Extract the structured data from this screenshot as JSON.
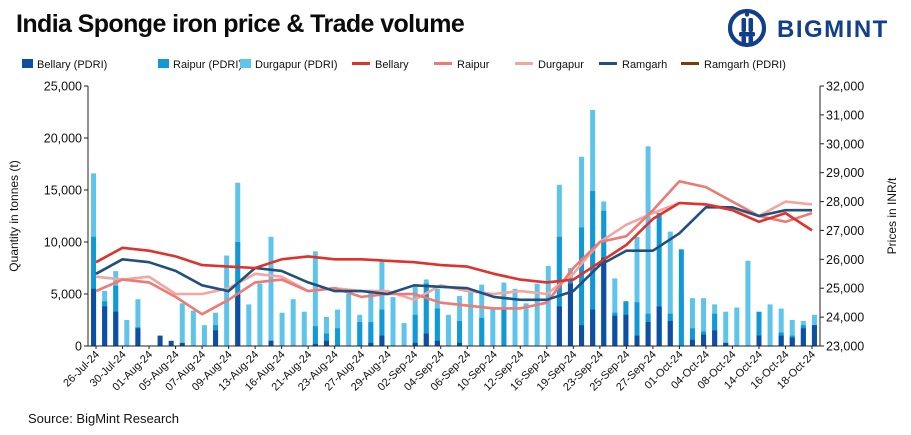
{
  "header": {
    "title": "India Sponge iron price & Trade volume",
    "logo_text": "BIGMINT"
  },
  "footer": {
    "source": "Source: BigMint Research"
  },
  "colors": {
    "bellary_pdri": "#0f4fa3",
    "raipur_pdri": "#1199d6",
    "durgapur_pdri": "#5ec4ec",
    "bellary": "#e0322b",
    "raipur": "#ee7a73",
    "durgapur": "#f4a5a0",
    "ramgarh": "#21507f",
    "ramgarh_pdri": "#7a3b0c",
    "brand": "#123f8c"
  },
  "chart_data": {
    "type": "bar+line",
    "title": "India Sponge iron price & Trade volume",
    "ylabel_left": "Quantity in tonnes (t)",
    "ylabel_right": "Prices in INR/t",
    "ylim_left": [
      0,
      25000
    ],
    "ylim_right": [
      23000,
      32000
    ],
    "yticks_left": [
      "0",
      "5,000",
      "10,000",
      "15,000",
      "20,000",
      "25,000"
    ],
    "yticks_right": [
      "23,000",
      "24,000",
      "25,000",
      "26,000",
      "27,000",
      "28,000",
      "29,000",
      "30,000",
      "31,000",
      "32,000"
    ],
    "xtick_labels": [
      "26-Jul-24",
      "30-Jul-24",
      "01-Aug-24",
      "05-Aug-24",
      "07-Aug-24",
      "09-Aug-24",
      "13-Aug-24",
      "16-Aug-24",
      "21-Aug-24",
      "23-Aug-24",
      "27-Aug-24",
      "29-Aug-24",
      "02-Sep-24",
      "04-Sep-24",
      "06-Sep-24",
      "10-Sep-24",
      "12-Sep-24",
      "16-Sep-24",
      "19-Sep-24",
      "23-Sep-24",
      "25-Sep-24",
      "27-Sep-24",
      "01-Oct-24",
      "04-Oct-24",
      "08-Oct-24",
      "14-Oct-24",
      "16-Oct-24",
      "18-Oct-24"
    ],
    "legend": [
      "Bellary (PDRI)",
      "Raipur (PDRI)",
      "Durgapur (PDRI)",
      "Bellary",
      "Raipur",
      "Durgapur",
      "Ramgarh",
      "Ramgarh (PDRI)"
    ],
    "bars": {
      "bellary_pdri": [
        5500,
        3800,
        3300,
        0,
        1700,
        0,
        1000,
        500,
        300,
        0,
        0,
        1500,
        0,
        5000,
        0,
        0,
        500,
        0,
        0,
        0,
        200,
        500,
        0,
        0,
        0,
        300,
        1000,
        0,
        0,
        300,
        1200,
        500,
        0,
        300,
        0,
        0,
        0,
        0,
        0,
        0,
        0,
        0,
        3800,
        6000,
        2000,
        3500,
        8500,
        2900,
        3000,
        1000,
        2300,
        3800,
        2400,
        0,
        600,
        1100,
        1500,
        300,
        0,
        0,
        1000,
        0,
        1000,
        800,
        1700,
        2000
      ],
      "raipur_pdri": [
        10500,
        4300,
        5800,
        0,
        1800,
        0,
        0,
        0,
        0,
        0,
        0,
        2000,
        0,
        10000,
        0,
        0,
        500,
        0,
        0,
        0,
        1900,
        1200,
        1700,
        0,
        2300,
        2300,
        3500,
        0,
        0,
        3000,
        6000,
        3600,
        0,
        2400,
        0,
        2700,
        0,
        3500,
        0,
        0,
        0,
        0,
        10500,
        6500,
        11400,
        14900,
        13000,
        3200,
        4300,
        4200,
        3100,
        12800,
        3100,
        9300,
        1700,
        1400,
        3100,
        300,
        0,
        0,
        3300,
        0,
        1300,
        1000,
        2000,
        2000
      ],
      "durgapur_pdri": [
        16600,
        5300,
        7200,
        2500,
        4500,
        0,
        0,
        0,
        4100,
        3400,
        2000,
        3200,
        8700,
        15700,
        4000,
        6000,
        10500,
        3200,
        4500,
        3300,
        9100,
        2800,
        3500,
        5000,
        3000,
        5400,
        8200,
        4700,
        2200,
        5700,
        6400,
        5500,
        3000,
        4800,
        5200,
        5900,
        3600,
        6100,
        5500,
        4100,
        6000,
        7700,
        15500,
        7500,
        18200,
        22700,
        13900,
        6500,
        4300,
        10500,
        19200,
        3000,
        11000,
        5200,
        4600,
        4600,
        4000,
        3300,
        3700,
        8200,
        3000,
        4000,
        3600,
        2500,
        2400,
        3000
      ]
    },
    "lines": {
      "bellary": [
        25900,
        26400,
        26300,
        26100,
        25800,
        25750,
        25700,
        26000,
        26100,
        26000,
        26000,
        25950,
        25900,
        25800,
        25750,
        25500,
        25300,
        25200,
        25300,
        25900,
        26500,
        27400,
        27950,
        27900,
        27700,
        27300,
        27600,
        27000
      ],
      "raipur": [
        24900,
        25300,
        25200,
        24700,
        24100,
        24600,
        25200,
        25300,
        24900,
        25000,
        24700,
        24800,
        24800,
        24500,
        24400,
        24300,
        24300,
        24500,
        25700,
        26600,
        26800,
        27700,
        28700,
        28500,
        28000,
        27500,
        27300,
        27600
      ],
      "durgapur": [
        25400,
        25300,
        25400,
        24800,
        24800,
        25000,
        25500,
        25400,
        24900,
        25000,
        24900,
        24900,
        24600,
        25100,
        24900,
        24800,
        24900,
        24800,
        25500,
        26600,
        27200,
        27600,
        27950,
        27900,
        27750,
        27500,
        28000,
        27900
      ],
      "ramgarh": [
        25500,
        26000,
        25900,
        25600,
        25100,
        24900,
        25700,
        25600,
        25200,
        24900,
        24900,
        24800,
        25100,
        25050,
        25000,
        24700,
        24600,
        24600,
        24900,
        25800,
        26300,
        26300,
        26900,
        27800,
        27800,
        27500,
        27700,
        27700
      ]
    }
  }
}
